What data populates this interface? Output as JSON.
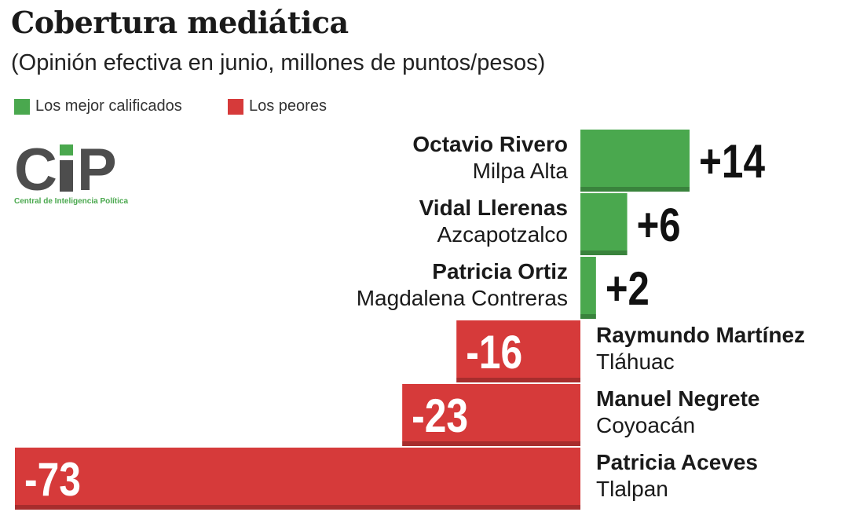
{
  "title": "Cobertura mediática",
  "subtitle": "(Opinión efectiva en junio, millones de puntos/pesos)",
  "legend": {
    "best_label": "Los mejor calificados",
    "worst_label": "Los peores"
  },
  "logo": {
    "letters": "CiP",
    "subtitle": "Central de Inteligencia Política"
  },
  "colors": {
    "positive": "#4aa84e",
    "negative": "#d63a3a",
    "logo_gray": "#4d4d4d"
  },
  "chart_data": {
    "type": "bar",
    "orientation": "horizontal",
    "title": "Cobertura mediática",
    "subtitle": "(Opinión efectiva en junio, millones de puntos/pesos)",
    "legend": [
      "Los mejor calificados",
      "Los peores"
    ],
    "bars": [
      {
        "name": "Octavio Rivero",
        "district": "Milpa Alta",
        "value": 14,
        "label": "+14",
        "group": "best"
      },
      {
        "name": "Vidal Llerenas",
        "district": "Azcapotzalco",
        "value": 6,
        "label": "+6",
        "group": "best"
      },
      {
        "name": "Patricia Ortiz",
        "district": "Magdalena Contreras",
        "value": 2,
        "label": "+2",
        "group": "best"
      },
      {
        "name": "Raymundo Martínez",
        "district": "Tláhuac",
        "value": -16,
        "label": "-16",
        "group": "worst"
      },
      {
        "name": "Manuel Negrete",
        "district": "Coyoacán",
        "value": -23,
        "label": "-23",
        "group": "worst"
      },
      {
        "name": "Patricia Aceves",
        "district": "Tlalpan",
        "value": -73,
        "label": "-73",
        "group": "worst"
      }
    ],
    "xlim": [
      -73,
      14
    ]
  }
}
